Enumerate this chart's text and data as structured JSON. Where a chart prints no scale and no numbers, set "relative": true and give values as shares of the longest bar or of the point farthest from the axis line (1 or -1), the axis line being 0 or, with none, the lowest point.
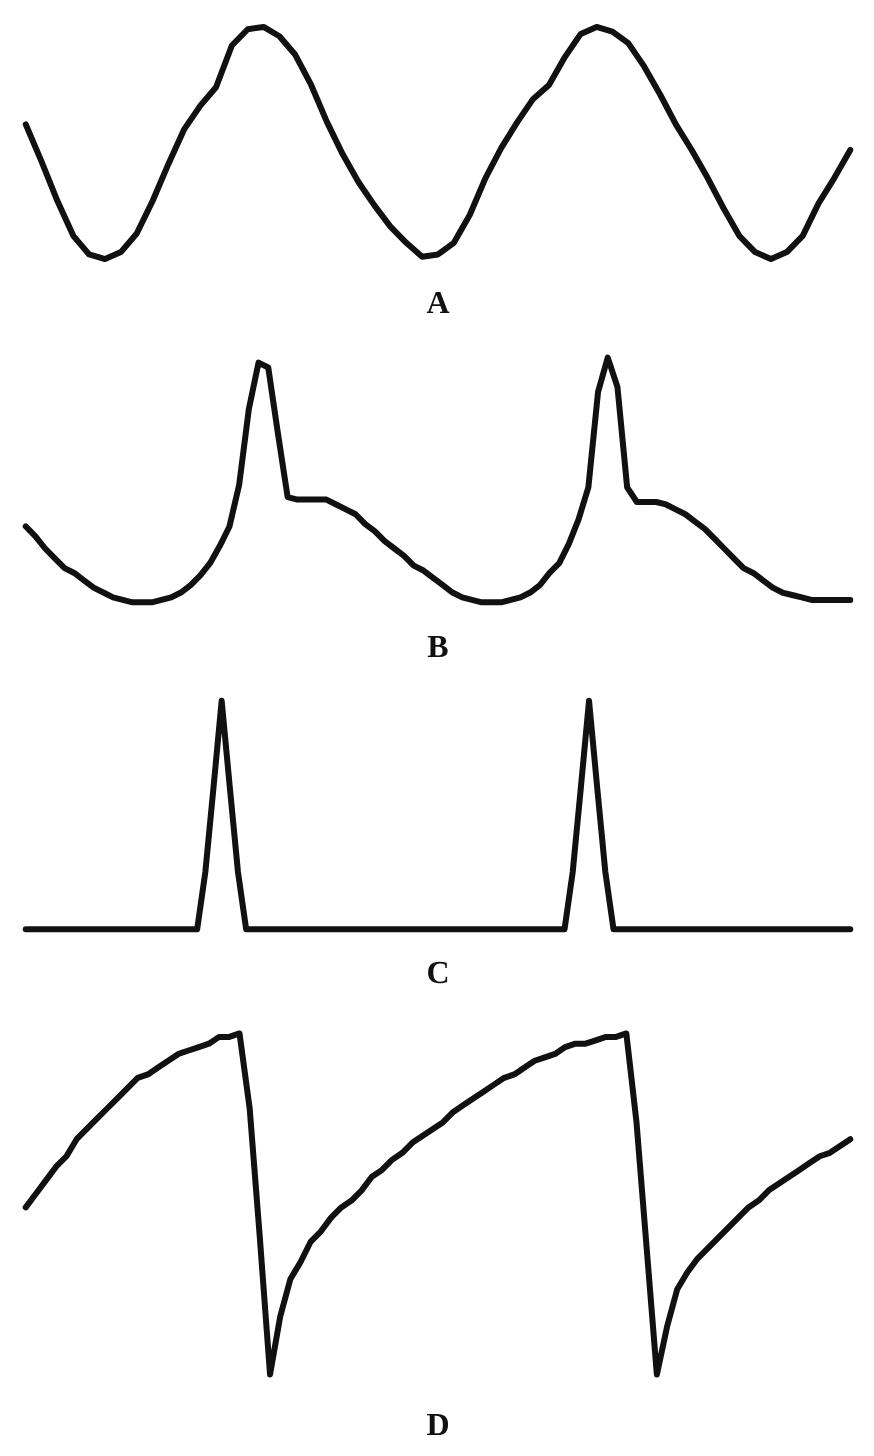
{
  "chart_data": [
    {
      "type": "line",
      "title": "A",
      "relative": true,
      "color": "#111111",
      "categories": [
        null,
        null,
        null,
        null,
        null,
        null,
        null,
        null,
        null,
        null,
        null,
        null,
        null,
        null,
        null,
        null,
        null,
        null,
        null,
        null,
        null,
        null,
        null,
        null,
        null,
        null,
        null,
        null,
        null,
        null,
        null,
        null,
        null,
        null,
        null,
        null,
        null,
        null,
        null,
        null,
        null,
        null,
        null,
        null,
        null,
        null,
        null,
        null,
        null,
        null,
        null,
        null,
        null
      ],
      "values": [
        0.58,
        0.42,
        0.25,
        0.1,
        0.02,
        0,
        0.03,
        0.11,
        0.25,
        0.41,
        0.56,
        0.66,
        0.74,
        0.92,
        0.99,
        1,
        0.96,
        0.88,
        0.75,
        0.59,
        0.45,
        0.33,
        0.23,
        0.14,
        0.07,
        0.01,
        0.02,
        0.07,
        0.19,
        0.35,
        0.48,
        0.59,
        0.69,
        0.75,
        0.87,
        0.97,
        1,
        0.98,
        0.93,
        0.83,
        0.71,
        0.58,
        0.47,
        0.35,
        0.22,
        0.1,
        0.03,
        0,
        0.03,
        0.1,
        0.24,
        0.35,
        0.47
      ]
    },
    {
      "type": "line",
      "title": "B",
      "relative": true,
      "color": "#111111",
      "categories": [
        null,
        null,
        null,
        null,
        null,
        null,
        null,
        null,
        null,
        null,
        null,
        null,
        null,
        null,
        null,
        null,
        null,
        null,
        null,
        null,
        null,
        null,
        null,
        null,
        null,
        null,
        null,
        null,
        null,
        null,
        null,
        null,
        null,
        null,
        null,
        null,
        null,
        null,
        null,
        null,
        null,
        null,
        null,
        null,
        null,
        null,
        null,
        null,
        null,
        null,
        null,
        null,
        null,
        null,
        null,
        null,
        null,
        null,
        null,
        null,
        null,
        null,
        null,
        null,
        null,
        null,
        null,
        null,
        null,
        null,
        null,
        null,
        null,
        null,
        null,
        null,
        null,
        null,
        null,
        null,
        null,
        null,
        null,
        null,
        null,
        null
      ],
      "values": [
        0.31,
        0.27,
        0.22,
        0.18,
        0.14,
        0.12,
        0.09,
        0.06,
        0.04,
        0.02,
        0.01,
        0,
        0,
        0,
        0.01,
        0.02,
        0.04,
        0.07,
        0.11,
        0.16,
        0.23,
        0.31,
        0.48,
        0.79,
        0.98,
        0.96,
        0.69,
        0.43,
        0.42,
        0.42,
        0.42,
        0.42,
        0.4,
        0.38,
        0.36,
        0.32,
        0.29,
        0.25,
        0.22,
        0.19,
        0.15,
        0.13,
        0.1,
        0.07,
        0.04,
        0.02,
        0.01,
        0,
        0,
        0,
        0.01,
        0.02,
        0.04,
        0.07,
        0.12,
        0.16,
        0.24,
        0.34,
        0.47,
        0.86,
        1,
        0.88,
        0.47,
        0.41,
        0.41,
        0.41,
        0.4,
        0.38,
        0.36,
        0.33,
        0.3,
        0.26,
        0.22,
        0.18,
        0.14,
        0.12,
        0.09,
        0.06,
        0.04,
        0.03,
        0.02,
        0.01,
        0.01,
        0.01,
        0.01,
        0.01
      ]
    },
    {
      "type": "line",
      "title": "C",
      "relative": true,
      "color": "#111111",
      "categories": [
        null,
        null,
        null,
        null,
        null,
        null,
        null,
        null,
        null,
        null,
        null,
        null,
        null,
        null,
        null,
        null,
        null,
        null,
        null,
        null,
        null,
        null,
        null,
        null,
        null,
        null,
        null,
        null,
        null,
        null,
        null,
        null,
        null,
        null,
        null,
        null,
        null,
        null,
        null,
        null,
        null,
        null,
        null,
        null,
        null,
        null,
        null,
        null,
        null,
        null,
        null,
        null,
        null,
        null,
        null,
        null,
        null,
        null,
        null,
        null,
        null,
        null,
        null,
        null,
        null,
        null,
        null,
        null,
        null,
        null,
        null,
        null,
        null,
        null,
        null,
        null,
        null,
        null,
        null,
        null,
        null,
        null,
        null,
        null,
        null,
        null,
        null,
        null,
        null,
        null,
        null,
        null,
        null,
        null,
        null,
        null,
        null,
        null,
        null,
        null,
        null,
        null
      ],
      "values": [
        0,
        0,
        0,
        0,
        0,
        0,
        0,
        0,
        0,
        0,
        0,
        0,
        0,
        0,
        0,
        0,
        0,
        0,
        0,
        0,
        0,
        0,
        0.25,
        0.62,
        1,
        0.62,
        0.25,
        0,
        0,
        0,
        0,
        0,
        0,
        0,
        0,
        0,
        0,
        0,
        0,
        0,
        0,
        0,
        0,
        0,
        0,
        0,
        0,
        0,
        0,
        0,
        0,
        0,
        0,
        0,
        0,
        0,
        0,
        0,
        0,
        0,
        0,
        0,
        0,
        0,
        0,
        0,
        0,
        0.25,
        0.62,
        1,
        0.62,
        0.25,
        0,
        0,
        0,
        0,
        0,
        0,
        0,
        0,
        0,
        0,
        0,
        0,
        0,
        0,
        0,
        0,
        0,
        0,
        0,
        0,
        0,
        0,
        0,
        0,
        0,
        0,
        0,
        0,
        0,
        0
      ]
    },
    {
      "type": "line",
      "title": "D",
      "relative": true,
      "color": "#111111",
      "categories": [
        null,
        null,
        null,
        null,
        null,
        null,
        null,
        null,
        null,
        null,
        null,
        null,
        null,
        null,
        null,
        null,
        null,
        null,
        null,
        null,
        null,
        null,
        null,
        null,
        null,
        null,
        null,
        null,
        null,
        null,
        null,
        null,
        null,
        null,
        null,
        null,
        null,
        null,
        null,
        null,
        null,
        null,
        null,
        null,
        null,
        null,
        null,
        null,
        null,
        null,
        null,
        null,
        null,
        null,
        null,
        null,
        null,
        null,
        null,
        null,
        null,
        null,
        null,
        null,
        null,
        null,
        null,
        null,
        null,
        null,
        null,
        null,
        null,
        null,
        null,
        null,
        null,
        null,
        null,
        null,
        null,
        null
      ],
      "values": [
        0.49,
        0.53,
        0.57,
        0.61,
        0.64,
        0.69,
        0.72,
        0.75,
        0.78,
        0.81,
        0.84,
        0.87,
        0.88,
        0.9,
        0.92,
        0.94,
        0.95,
        0.96,
        0.97,
        0.99,
        0.99,
        1,
        0.78,
        0.4,
        0,
        0.17,
        0.28,
        0.33,
        0.39,
        0.42,
        0.46,
        0.49,
        0.51,
        0.54,
        0.58,
        0.6,
        0.63,
        0.65,
        0.68,
        0.7,
        0.72,
        0.74,
        0.77,
        0.79,
        0.81,
        0.83,
        0.85,
        0.87,
        0.88,
        0.9,
        0.92,
        0.93,
        0.94,
        0.96,
        0.97,
        0.97,
        0.98,
        0.99,
        0.99,
        1,
        0.74,
        0.37,
        0,
        0.14,
        0.25,
        0.3,
        0.34,
        0.37,
        0.4,
        0.43,
        0.46,
        0.49,
        0.51,
        0.54,
        0.56,
        0.58,
        0.6,
        0.62,
        0.64,
        0.65,
        0.67,
        0.69
      ]
    }
  ]
}
